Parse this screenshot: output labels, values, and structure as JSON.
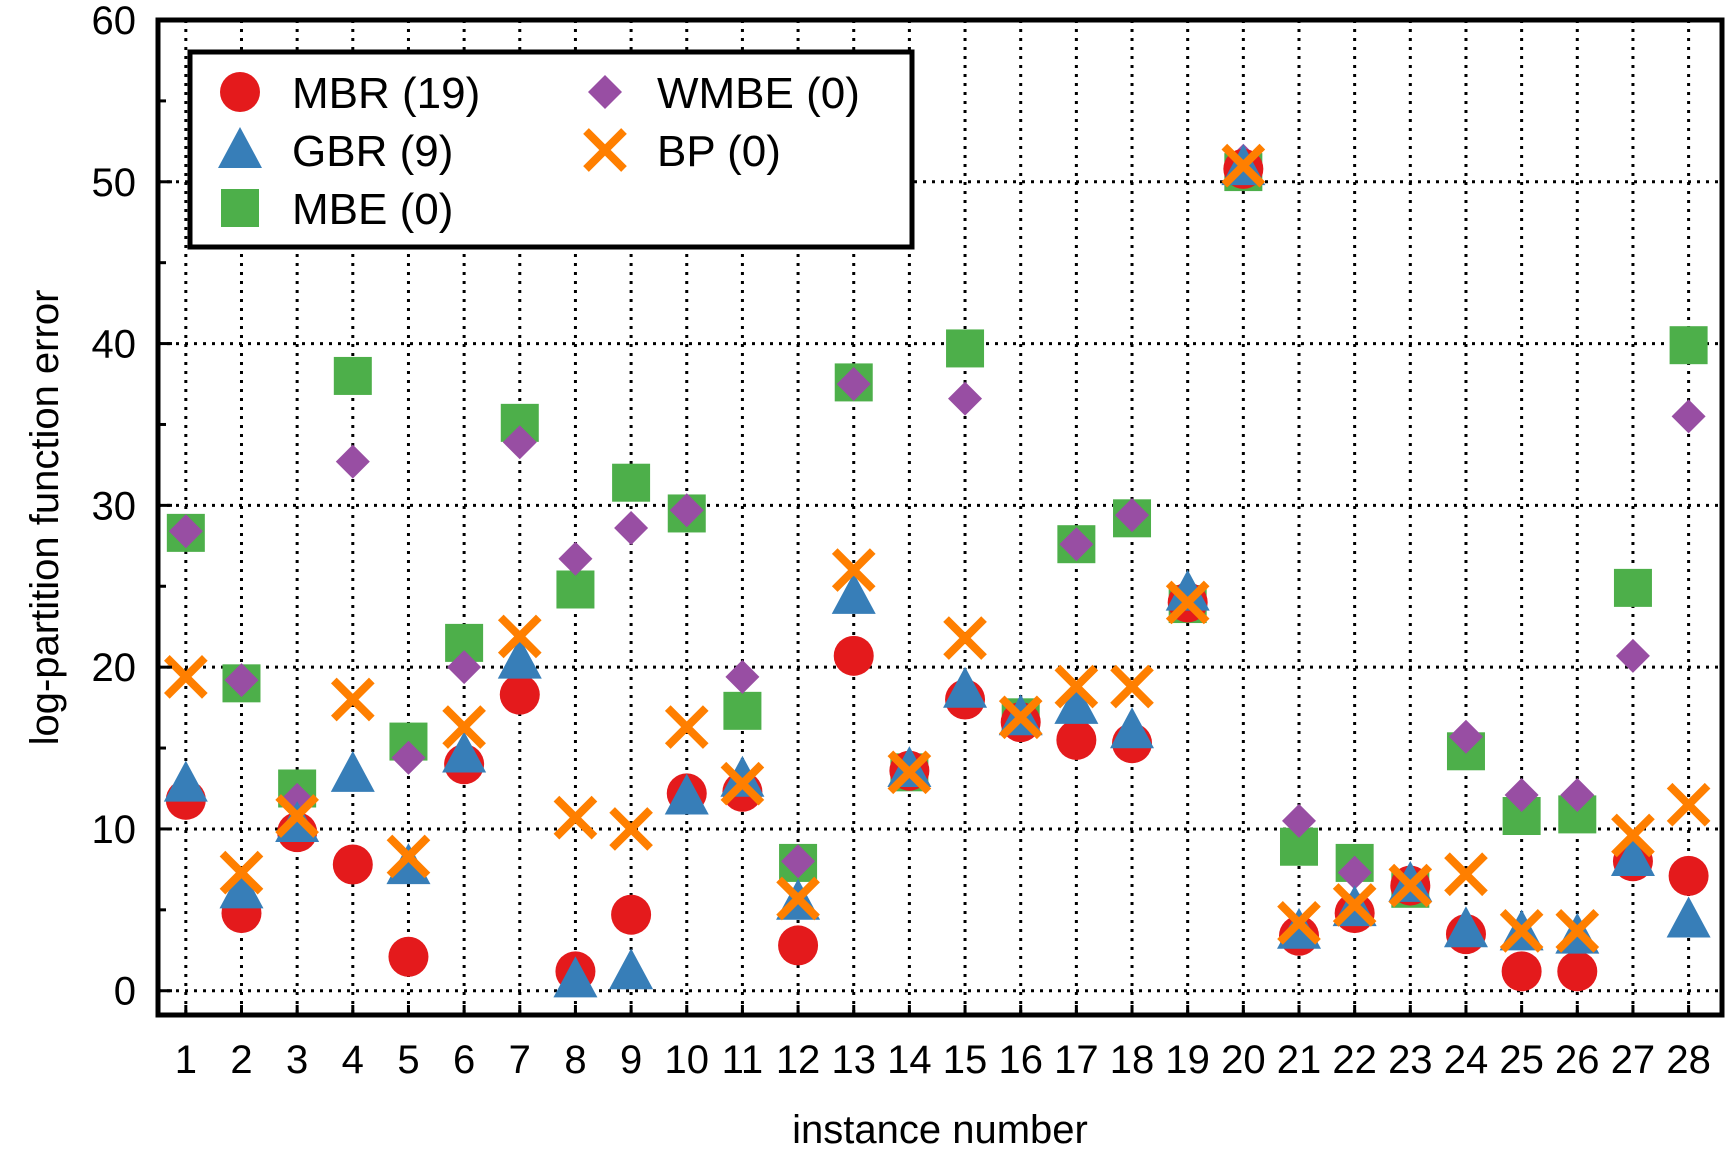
{
  "chart_data": {
    "type": "scatter",
    "title": "",
    "xlabel": "instance number",
    "ylabel": "log-partition function error",
    "xlim": [
      0.5,
      28.6
    ],
    "ylim": [
      -1.5,
      60
    ],
    "x_ticks": [
      1,
      2,
      3,
      4,
      5,
      6,
      7,
      8,
      9,
      10,
      11,
      12,
      13,
      14,
      15,
      16,
      17,
      18,
      19,
      20,
      21,
      22,
      23,
      24,
      25,
      26,
      27,
      28
    ],
    "y_ticks": [
      0,
      10,
      20,
      30,
      40,
      50,
      60
    ],
    "grid": true,
    "legend_position": "top-left",
    "series": [
      {
        "name": "MBR",
        "legend_label": "MBR (19)",
        "marker": "circle",
        "color": "#e41a1c",
        "values": [
          11.8,
          4.8,
          9.8,
          7.8,
          2.1,
          14.0,
          18.3,
          1.2,
          4.7,
          12.2,
          12.3,
          2.8,
          20.7,
          13.6,
          18.0,
          16.6,
          15.5,
          15.3,
          24.0,
          50.8,
          3.4,
          4.8,
          6.5,
          3.5,
          1.2,
          1.2,
          8.0,
          7.1
        ]
      },
      {
        "name": "GBR",
        "legend_label": "GBR (9)",
        "marker": "triangle",
        "color": "#377eb8",
        "values": [
          12.8,
          6.2,
          10.3,
          13.4,
          7.7,
          14.6,
          20.4,
          0.7,
          1.2,
          12.0,
          13.1,
          5.5,
          24.4,
          13.7,
          18.6,
          16.9,
          17.6,
          16.1,
          24.6,
          50.9,
          3.7,
          5.1,
          6.6,
          3.8,
          3.6,
          3.4,
          8.2,
          4.4
        ]
      },
      {
        "name": "MBE",
        "legend_label": "MBE (0)",
        "marker": "square",
        "color": "#4daf4a",
        "values": [
          28.3,
          19.0,
          12.5,
          38.0,
          15.4,
          21.5,
          35.1,
          24.8,
          31.4,
          29.5,
          17.3,
          7.9,
          37.6,
          13.5,
          39.7,
          16.9,
          27.6,
          29.2,
          23.9,
          50.6,
          8.9,
          7.9,
          6.3,
          14.8,
          10.8,
          10.9,
          24.9,
          39.9
        ]
      },
      {
        "name": "WMBE",
        "legend_label": "WMBE (0)",
        "marker": "diamond",
        "color": "#984ea3",
        "values": [
          28.4,
          19.2,
          11.8,
          32.7,
          14.4,
          20.0,
          33.9,
          26.7,
          28.6,
          29.7,
          19.4,
          8.0,
          37.5,
          13.6,
          36.6,
          17.0,
          27.6,
          29.4,
          24.1,
          51.3,
          10.5,
          7.3,
          6.7,
          15.7,
          12.1,
          12.1,
          20.7,
          35.5
        ]
      },
      {
        "name": "BP",
        "legend_label": "BP (0)",
        "marker": "x",
        "color": "#ff7f00",
        "values": [
          19.4,
          7.3,
          10.8,
          18.0,
          8.3,
          16.3,
          21.9,
          10.7,
          10.0,
          16.3,
          12.8,
          5.7,
          26.0,
          13.5,
          21.8,
          16.9,
          18.8,
          18.8,
          24.0,
          51.0,
          4.2,
          5.3,
          6.5,
          7.2,
          3.7,
          3.7,
          9.6,
          11.5
        ]
      }
    ]
  }
}
